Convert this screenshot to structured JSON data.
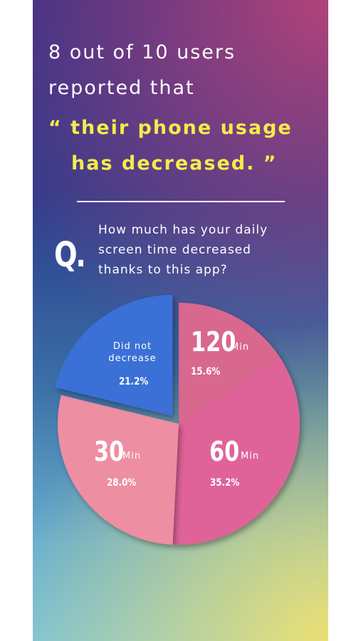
{
  "headline": {
    "lines": [
      "8 out of 10 users",
      "reported that"
    ],
    "highlight": [
      "“ their phone usage",
      "has decreased.  ”"
    ]
  },
  "question": {
    "mark": "Q.",
    "lines": [
      "How much has your daily",
      "screen time decreased",
      "thanks to this app?"
    ]
  },
  "chart_data": {
    "type": "pie",
    "categories": [
      "120",
      "60",
      "30",
      "Did not decrease"
    ],
    "units": [
      "Min",
      "Min",
      "Min",
      null
    ],
    "values": [
      15.6,
      35.2,
      28.0,
      21.2
    ],
    "value_labels": [
      "15.6%",
      "35.2%",
      "28.0%",
      "21.2%"
    ],
    "colors": [
      "#d9678f",
      "#df6498",
      "#ee8ea3",
      "#3a6fd6"
    ],
    "exploded": [
      false,
      false,
      false,
      true
    ]
  }
}
